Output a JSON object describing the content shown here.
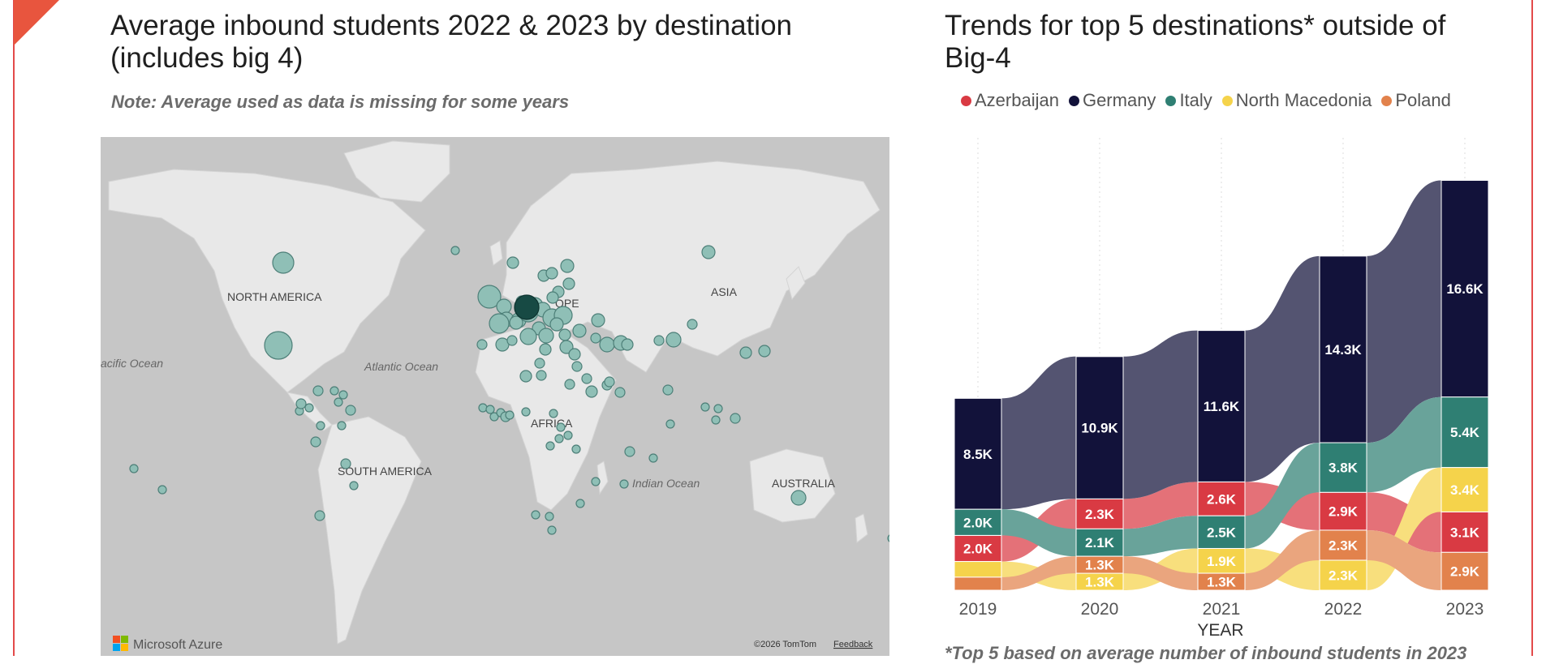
{
  "left_panel": {
    "title_line1": "Average inbound students 2022 & 2023 by destination",
    "title_line2": "(includes big 4)",
    "note": "Note: Average used as data is missing for some years",
    "map": {
      "labels": {
        "north_america": "NORTH AMERICA",
        "asia": "ASIA",
        "africa": "AFRICA",
        "south_america": "SOUTH AMERICA",
        "australia": "AUSTRALIA",
        "europe_partial": "OPE",
        "pacific": "acific Ocean",
        "atlantic": "Atlantic Ocean",
        "indian": "Indian Ocean"
      },
      "brand": "Microsoft Azure",
      "copyright": "©2026 TomTom",
      "feedback": "Feedback"
    }
  },
  "right_panel": {
    "title_line1": "Trends for top 5 destinations* outside of",
    "title_line2": "Big-4",
    "footnote": "*Top 5 based on average number of inbound students in 2023"
  },
  "chart_data": {
    "type": "area",
    "subtype": "ribbon-stacked",
    "title": "Trends for top 5 destinations* outside of Big-4",
    "xlabel": "YEAR",
    "ylabel": "",
    "categories": [
      "2019",
      "2020",
      "2021",
      "2022",
      "2023"
    ],
    "series": [
      {
        "name": "Azerbaijan",
        "color": "#d93a43",
        "values": [
          2.0,
          2.3,
          2.6,
          2.9,
          3.1
        ],
        "labels": [
          "2.0K",
          "2.3K",
          "2.6K",
          "2.9K",
          "3.1K"
        ]
      },
      {
        "name": "Germany",
        "color": "#12123a",
        "values": [
          8.5,
          10.9,
          11.6,
          14.3,
          16.6
        ],
        "labels": [
          "8.5K",
          "10.9K",
          "11.6K",
          "14.3K",
          "16.6K"
        ]
      },
      {
        "name": "Italy",
        "color": "#2f7f73",
        "values": [
          2.0,
          2.1,
          2.5,
          3.8,
          5.4
        ],
        "labels": [
          "2.0K",
          "2.1K",
          "2.5K",
          "3.8K",
          "5.4K"
        ]
      },
      {
        "name": "North Macedonia",
        "color": "#f5d34b",
        "values": [
          1.2,
          1.3,
          1.9,
          2.3,
          3.4
        ],
        "labels": [
          "",
          "1.3K",
          "1.9K",
          "2.3K",
          "3.4K"
        ]
      },
      {
        "name": "Poland",
        "color": "#e2824c",
        "values": [
          1.0,
          1.3,
          1.3,
          2.3,
          2.9
        ],
        "labels": [
          "",
          "1.3K",
          "1.3K",
          "2.3K",
          "2.9K"
        ]
      }
    ],
    "legend_position": "top"
  }
}
